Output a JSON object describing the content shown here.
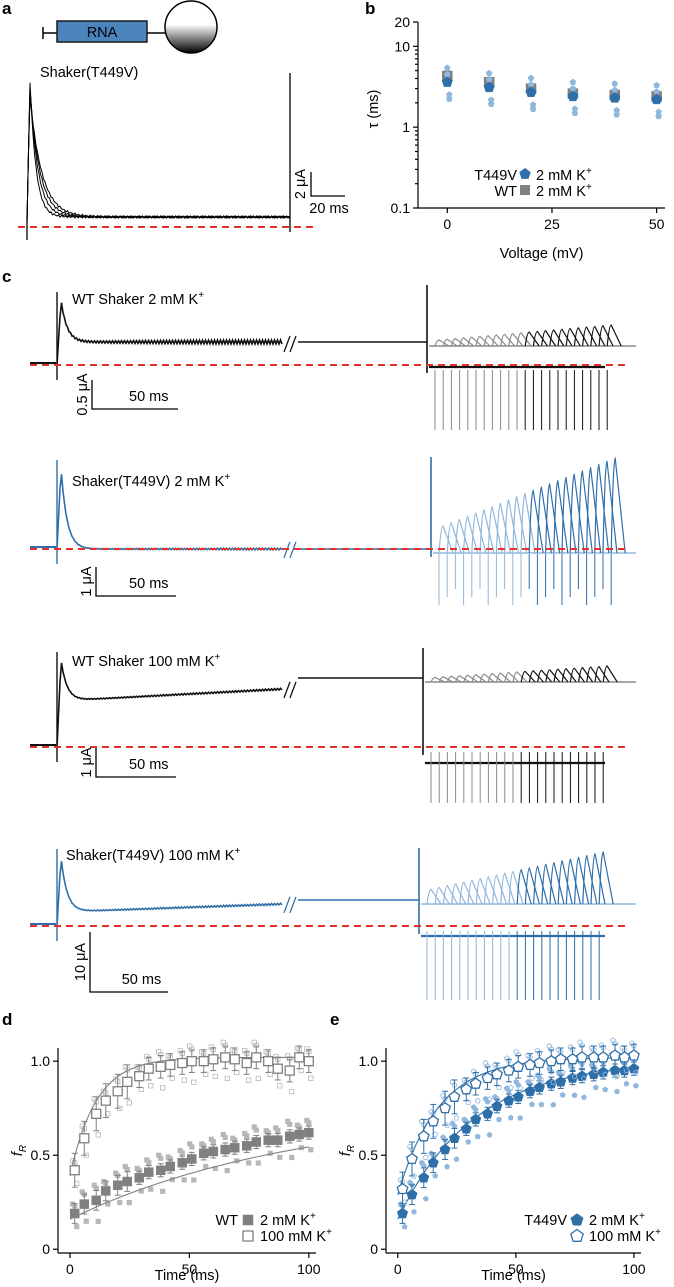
{
  "panel_labels": {
    "a": "a",
    "b": "b",
    "c": "c",
    "d": "d",
    "e": "e"
  },
  "colors": {
    "blue": "#2f6fa9",
    "light_blue": "#90b7dd",
    "gray": "#808080",
    "light_gray": "#b7b7b7",
    "black": "#111111",
    "red": "#e8302b"
  },
  "panel_a": {
    "construct_label": "RNA",
    "trace_label": "Shaker(T449V)",
    "scale_y": "2 μA",
    "scale_x": "20 ms"
  },
  "panel_c": {
    "traces": [
      {
        "label": "WT Shaker 2 mM K",
        "sup": "+",
        "scale_y": "0.5 μA",
        "scale_x": "50 ms"
      },
      {
        "label": "Shaker(T449V) 2 mM K",
        "sup": "+",
        "scale_y": "1 μA",
        "scale_x": "50 ms"
      },
      {
        "label": "WT Shaker 100 mM K",
        "sup": "+",
        "scale_y": "1 μA",
        "scale_x": "50 ms"
      },
      {
        "label": "Shaker(T449V) 100 mM K",
        "sup": "+",
        "scale_y": "10 μA",
        "scale_x": "50 ms"
      }
    ]
  },
  "chart_data": [
    {
      "panel": "b",
      "type": "scatter",
      "xlabel": "Voltage (mV)",
      "ylabel": "τ (ms)",
      "yscale": "log",
      "xlim": [
        -7,
        52
      ],
      "ylim": [
        0.1,
        20
      ],
      "xticks": [
        "0",
        "25",
        "50"
      ],
      "yticks": [
        "0.1",
        "1",
        "10",
        "20"
      ],
      "legend_position": "bottom-right",
      "legend_prefix": [
        "T449V",
        "WT"
      ],
      "series": [
        {
          "name": "2 mM K",
          "name_sup": "+",
          "group": "T449V",
          "marker": "pentagon-filled",
          "x": [
            0,
            10,
            20,
            30,
            40,
            50
          ],
          "y": [
            3.6,
            3.1,
            2.7,
            2.4,
            2.3,
            2.2
          ]
        },
        {
          "name": "2 mM K",
          "name_sup": "+",
          "group": "WT",
          "marker": "square-filled",
          "x": [
            0,
            10,
            20,
            30,
            40,
            50
          ],
          "y": [
            4.3,
            3.6,
            3.0,
            2.6,
            2.5,
            2.4
          ]
        }
      ]
    },
    {
      "panel": "d",
      "type": "line",
      "xlabel": "Time (ms)",
      "ylabel": "f",
      "ylabel_sub": "R",
      "xlim": [
        -5,
        103
      ],
      "ylim": [
        -0.02,
        1.07
      ],
      "xticks": [
        "0",
        "50",
        "100"
      ],
      "yticks": [
        "0",
        "0.5",
        "1.0"
      ],
      "legend_prefix": "WT",
      "series": [
        {
          "name": "2 mM K",
          "name_sup": "+",
          "marker": "square-filled",
          "x": [
            2,
            6,
            11,
            15,
            20,
            24,
            29,
            33,
            38,
            42,
            47,
            51,
            56,
            60,
            65,
            69,
            74,
            78,
            83,
            87,
            92,
            96,
            100
          ],
          "y": [
            0.19,
            0.24,
            0.26,
            0.31,
            0.34,
            0.36,
            0.38,
            0.41,
            0.42,
            0.44,
            0.46,
            0.48,
            0.51,
            0.52,
            0.53,
            0.54,
            0.55,
            0.57,
            0.58,
            0.58,
            0.6,
            0.61,
            0.62
          ]
        },
        {
          "name": "100 mM K",
          "name_sup": "+",
          "marker": "square-open",
          "x": [
            2,
            6,
            11,
            15,
            20,
            24,
            29,
            33,
            38,
            42,
            47,
            51,
            56,
            60,
            65,
            69,
            74,
            78,
            83,
            87,
            92,
            96,
            100
          ],
          "y": [
            0.42,
            0.59,
            0.72,
            0.79,
            0.84,
            0.89,
            0.92,
            0.96,
            0.97,
            0.98,
            0.99,
            1.0,
            1.0,
            1.01,
            1.02,
            1.01,
            0.99,
            1.02,
            1.0,
            0.96,
            0.95,
            1.02,
            1.0
          ]
        }
      ]
    },
    {
      "panel": "e",
      "type": "line",
      "xlabel": "Time (ms)",
      "ylabel": "f",
      "ylabel_sub": "R",
      "xlim": [
        -5,
        103
      ],
      "ylim": [
        -0.02,
        1.07
      ],
      "xticks": [
        "0",
        "50",
        "100"
      ],
      "yticks": [
        "0",
        "0.5",
        "1.0"
      ],
      "legend_prefix": "T449V",
      "series": [
        {
          "name": "2 mM K",
          "name_sup": "+",
          "marker": "pentagon-filled",
          "x": [
            2,
            6,
            11,
            15,
            20,
            24,
            29,
            33,
            38,
            42,
            47,
            51,
            56,
            60,
            65,
            69,
            74,
            78,
            83,
            87,
            92,
            96,
            100
          ],
          "y": [
            0.19,
            0.29,
            0.38,
            0.46,
            0.53,
            0.59,
            0.64,
            0.69,
            0.72,
            0.76,
            0.79,
            0.81,
            0.84,
            0.86,
            0.88,
            0.89,
            0.91,
            0.92,
            0.93,
            0.94,
            0.95,
            0.95,
            0.96
          ]
        },
        {
          "name": "100 mM K",
          "name_sup": "+",
          "marker": "pentagon-open",
          "x": [
            2,
            6,
            11,
            15,
            20,
            24,
            29,
            33,
            38,
            42,
            47,
            51,
            56,
            60,
            65,
            69,
            74,
            78,
            83,
            87,
            92,
            96,
            100
          ],
          "y": [
            0.32,
            0.48,
            0.6,
            0.68,
            0.75,
            0.81,
            0.85,
            0.88,
            0.91,
            0.93,
            0.95,
            0.97,
            0.98,
            0.99,
            1.0,
            1.01,
            1.01,
            1.02,
            1.02,
            1.02,
            1.03,
            1.02,
            1.03
          ]
        }
      ]
    }
  ]
}
